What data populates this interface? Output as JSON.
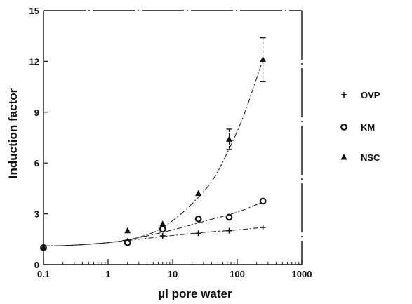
{
  "chart_data": {
    "type": "scatter",
    "xscale": "log",
    "xlim": [
      0.1,
      1000
    ],
    "ylim": [
      0,
      15
    ],
    "xlabel": "µl pore water",
    "ylabel": "Induction factor",
    "x_ticks": [
      "0.1",
      "1",
      "10",
      "100",
      "1000"
    ],
    "y_ticks": [
      "0",
      "3",
      "6",
      "9",
      "12",
      "15"
    ],
    "grid": false,
    "legend_position": "right",
    "series": [
      {
        "name": "OVP",
        "marker": "plus",
        "x": [
          0.1,
          2,
          7,
          25,
          75,
          250
        ],
        "y": [
          1.0,
          1.4,
          1.7,
          1.85,
          2.0,
          2.2
        ],
        "fit": [
          [
            0.1,
            1.1
          ],
          [
            0.3,
            1.15
          ],
          [
            1,
            1.3
          ],
          [
            3,
            1.5
          ],
          [
            10,
            1.72
          ],
          [
            30,
            1.9
          ],
          [
            100,
            2.05
          ],
          [
            250,
            2.2
          ]
        ]
      },
      {
        "name": "KM",
        "marker": "circle",
        "x": [
          0.1,
          2,
          7,
          25,
          75,
          250
        ],
        "y": [
          1.0,
          1.3,
          2.1,
          2.7,
          2.8,
          3.75
        ],
        "fit": [
          [
            0.1,
            1.1
          ],
          [
            0.3,
            1.15
          ],
          [
            1,
            1.3
          ],
          [
            3,
            1.6
          ],
          [
            10,
            2.05
          ],
          [
            30,
            2.55
          ],
          [
            100,
            3.1
          ],
          [
            250,
            3.7
          ]
        ]
      },
      {
        "name": "NSC",
        "marker": "triangle",
        "x": [
          0.1,
          2,
          7,
          25,
          75,
          250
        ],
        "y": [
          1.0,
          2.0,
          2.4,
          4.2,
          7.4,
          12.1
        ],
        "y_err": [
          0,
          0,
          0,
          0,
          0.6,
          1.3
        ],
        "fit": [
          [
            0.1,
            1.1
          ],
          [
            0.3,
            1.15
          ],
          [
            1,
            1.3
          ],
          [
            2,
            1.45
          ],
          [
            5,
            1.9
          ],
          [
            10,
            2.6
          ],
          [
            20,
            3.6
          ],
          [
            40,
            4.9
          ],
          [
            70,
            6.6
          ],
          [
            120,
            8.6
          ],
          [
            180,
            10.5
          ],
          [
            250,
            12.1
          ]
        ]
      }
    ]
  }
}
